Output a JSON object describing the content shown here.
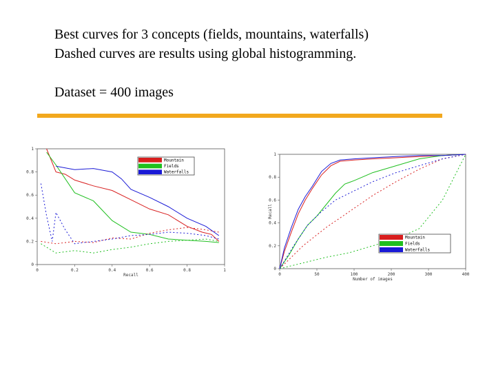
{
  "slide": {
    "line1": "Best curves for 3 concepts (fields, mountains, waterfalls)",
    "line2": "Dashed curves are results using global histogramming.",
    "line3": "Dataset = 400 images"
  },
  "colors": {
    "rule": "#f2a81d",
    "mountain": "#d81e1e",
    "fields": "#1fbf1f",
    "waterfalls": "#1a1ad6"
  },
  "chart_data": [
    {
      "type": "line",
      "xlabel": "Recall",
      "ylabel": "",
      "xlim": [
        0,
        1
      ],
      "ylim": [
        0,
        1
      ],
      "xticks": [
        "0",
        "0.2",
        "0.4",
        "0.6",
        "0.8",
        "1"
      ],
      "yticks": [
        "0",
        "0.2",
        "0.4",
        "0.6",
        "0.8",
        "1"
      ],
      "legend": [
        "Mountain",
        "Fields",
        "Waterfalls"
      ],
      "series": [
        {
          "name": "Mountain",
          "style": "solid",
          "x": [
            0.05,
            0.08,
            0.1,
            0.15,
            0.2,
            0.3,
            0.4,
            0.5,
            0.6,
            0.7,
            0.8,
            0.88,
            0.93,
            0.97
          ],
          "y": [
            1,
            0.88,
            0.8,
            0.78,
            0.73,
            0.68,
            0.64,
            0.56,
            0.48,
            0.43,
            0.33,
            0.28,
            0.26,
            0.2
          ]
        },
        {
          "name": "Fields",
          "style": "solid",
          "x": [
            0.05,
            0.1,
            0.2,
            0.3,
            0.4,
            0.5,
            0.6,
            0.7,
            0.8,
            0.9,
            0.97
          ],
          "y": [
            0.97,
            0.86,
            0.62,
            0.55,
            0.38,
            0.28,
            0.26,
            0.22,
            0.21,
            0.2,
            0.19
          ]
        },
        {
          "name": "Waterfalls",
          "style": "solid",
          "x": [
            0.1,
            0.2,
            0.3,
            0.4,
            0.45,
            0.5,
            0.6,
            0.7,
            0.8,
            0.9,
            0.97
          ],
          "y": [
            0.85,
            0.82,
            0.83,
            0.8,
            0.74,
            0.65,
            0.58,
            0.5,
            0.4,
            0.33,
            0.25
          ]
        },
        {
          "name": "Mountain",
          "style": "dashed",
          "x": [
            0.02,
            0.1,
            0.2,
            0.3,
            0.4,
            0.5,
            0.6,
            0.7,
            0.8,
            0.9,
            0.97
          ],
          "y": [
            0.2,
            0.18,
            0.2,
            0.19,
            0.23,
            0.22,
            0.27,
            0.3,
            0.32,
            0.3,
            0.28
          ]
        },
        {
          "name": "Fields",
          "style": "dashed",
          "x": [
            0.02,
            0.1,
            0.2,
            0.3,
            0.4,
            0.5,
            0.6,
            0.7,
            0.8,
            0.9,
            0.97
          ],
          "y": [
            0.18,
            0.1,
            0.12,
            0.1,
            0.13,
            0.15,
            0.18,
            0.2,
            0.21,
            0.22,
            0.2
          ]
        },
        {
          "name": "Waterfalls",
          "style": "dashed",
          "x": [
            0.02,
            0.05,
            0.08,
            0.1,
            0.15,
            0.2,
            0.3,
            0.4,
            0.5,
            0.6,
            0.7,
            0.8,
            0.9,
            0.97
          ],
          "y": [
            0.7,
            0.42,
            0.2,
            0.45,
            0.3,
            0.18,
            0.2,
            0.22,
            0.25,
            0.26,
            0.28,
            0.27,
            0.25,
            0.22
          ]
        }
      ]
    },
    {
      "type": "line",
      "xlabel": "Number of images",
      "ylabel": "Recall",
      "xlim": [
        0,
        400
      ],
      "ylim": [
        0,
        1
      ],
      "xticks": [
        "0",
        "50",
        "100",
        "200",
        "300",
        "400"
      ],
      "yticks": [
        "0",
        "0.2",
        "0.4",
        "0.6",
        "0.8",
        "1"
      ],
      "legend": [
        "Mountain",
        "Fields",
        "Waterfalls"
      ],
      "series": [
        {
          "name": "Mountain",
          "style": "solid",
          "x": [
            0,
            10,
            25,
            40,
            55,
            70,
            90,
            110,
            130,
            160,
            200,
            250,
            300,
            350,
            400
          ],
          "y": [
            0,
            0.15,
            0.32,
            0.48,
            0.6,
            0.7,
            0.82,
            0.9,
            0.94,
            0.95,
            0.96,
            0.97,
            0.98,
            0.99,
            1
          ]
        },
        {
          "name": "Fields",
          "style": "solid",
          "x": [
            0,
            20,
            40,
            60,
            80,
            100,
            120,
            140,
            160,
            200,
            250,
            300,
            350,
            400
          ],
          "y": [
            0,
            0.12,
            0.26,
            0.38,
            0.46,
            0.56,
            0.66,
            0.74,
            0.77,
            0.84,
            0.9,
            0.96,
            0.99,
            1
          ]
        },
        {
          "name": "Waterfalls",
          "style": "solid",
          "x": [
            0,
            10,
            25,
            40,
            55,
            70,
            90,
            110,
            130,
            160,
            200,
            250,
            300,
            350,
            400
          ],
          "y": [
            0,
            0.18,
            0.36,
            0.52,
            0.63,
            0.72,
            0.85,
            0.92,
            0.95,
            0.96,
            0.97,
            0.98,
            0.99,
            0.99,
            1
          ]
        },
        {
          "name": "Mountain",
          "style": "dashed",
          "x": [
            0,
            50,
            100,
            150,
            200,
            250,
            300,
            350,
            400
          ],
          "y": [
            0,
            0.2,
            0.36,
            0.5,
            0.64,
            0.76,
            0.87,
            0.96,
            1
          ]
        },
        {
          "name": "Fields",
          "style": "dashed",
          "x": [
            0,
            50,
            100,
            150,
            200,
            250,
            300,
            350,
            400
          ],
          "y": [
            0,
            0.05,
            0.1,
            0.14,
            0.2,
            0.26,
            0.35,
            0.6,
            1
          ]
        },
        {
          "name": "Waterfalls",
          "style": "dashed",
          "x": [
            0,
            30,
            60,
            90,
            120,
            160,
            200,
            250,
            300,
            350,
            400
          ],
          "y": [
            0,
            0.2,
            0.38,
            0.5,
            0.6,
            0.68,
            0.76,
            0.84,
            0.9,
            0.96,
            1
          ]
        }
      ]
    }
  ]
}
